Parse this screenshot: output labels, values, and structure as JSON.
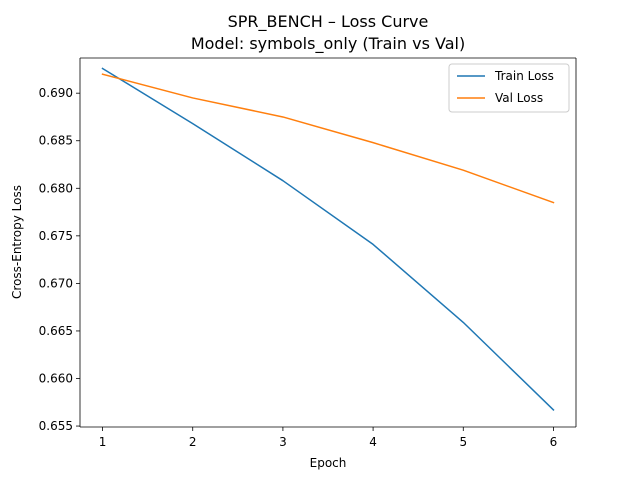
{
  "chart_data": {
    "type": "line",
    "title": "SPR_BENCH – Loss Curve",
    "subtitle": "Model: symbols_only (Train vs Val)",
    "xlabel": "Epoch",
    "ylabel": "Cross-Entropy Loss",
    "x": [
      1,
      2,
      3,
      4,
      5,
      6
    ],
    "xticks": [
      1,
      2,
      3,
      4,
      5,
      6
    ],
    "yticks": [
      0.655,
      0.66,
      0.665,
      0.67,
      0.675,
      0.68,
      0.685,
      0.69
    ],
    "xlim": [
      0.75,
      6.25
    ],
    "ylim": [
      0.6549,
      0.6937
    ],
    "grid": false,
    "legend_position": "top-right",
    "series": [
      {
        "name": "Train Loss",
        "color": "#1f77b4",
        "values": [
          0.6926,
          0.6868,
          0.6808,
          0.6741,
          0.6659,
          0.6567
        ]
      },
      {
        "name": "Val Loss",
        "color": "#ff7f0e",
        "values": [
          0.692,
          0.6895,
          0.6875,
          0.6848,
          0.6819,
          0.6785
        ]
      }
    ]
  }
}
